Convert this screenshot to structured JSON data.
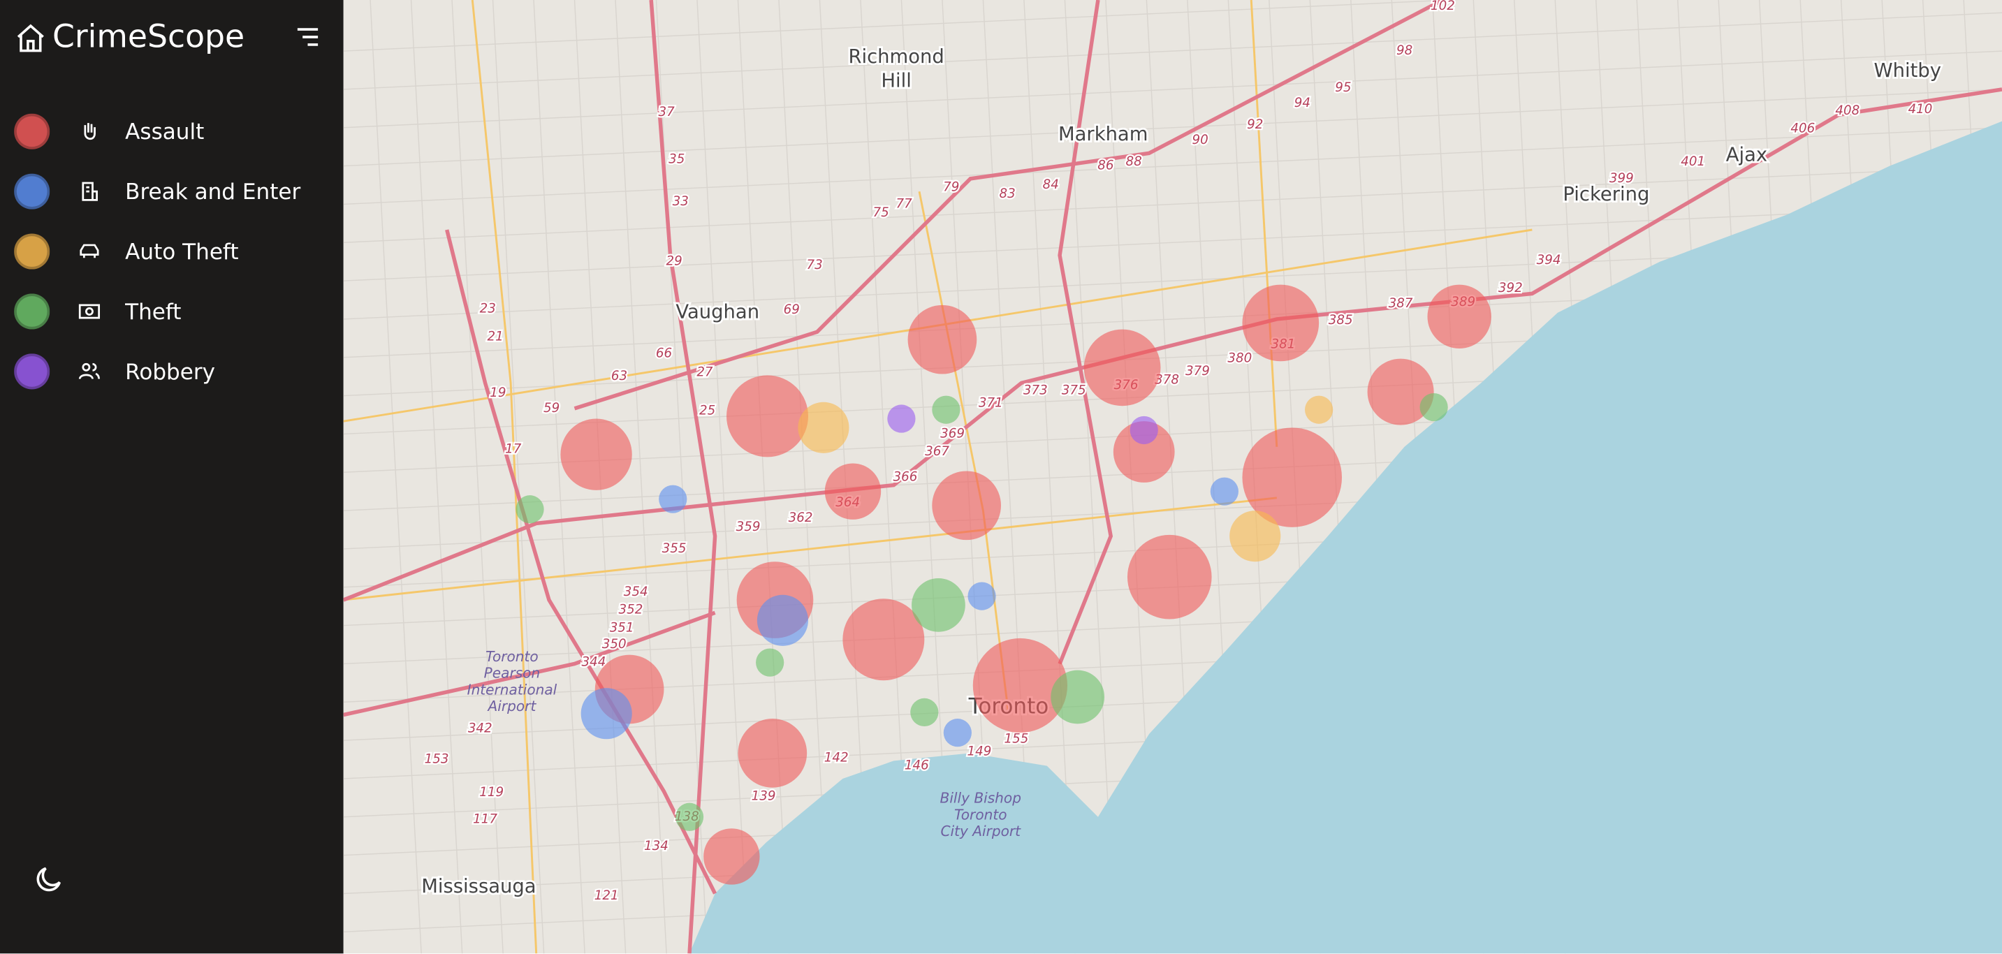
{
  "app": {
    "title": "CrimeScope"
  },
  "legend": [
    {
      "label": "Assault",
      "color": "#f05a5a"
    },
    {
      "label": "Break and Enter",
      "color": "#5b8ff0"
    },
    {
      "label": "Auto Theft",
      "color": "#f8b94e"
    },
    {
      "label": "Theft",
      "color": "#6cc26a"
    },
    {
      "label": "Robbery",
      "color": "#9a5cf0"
    }
  ],
  "map": {
    "places": [
      "Richmond",
      "Hill",
      "Markham",
      "Vaughan",
      "Toronto",
      "Mississauga",
      "Pickering",
      "Ajax",
      "Whitby"
    ],
    "airports": [
      [
        "Toronto",
        "Pearson",
        "International",
        "Airport"
      ],
      [
        "Billy Bishop",
        "Toronto",
        "City Airport"
      ]
    ],
    "routes": [
      "37",
      "35",
      "33",
      "29",
      "27",
      "25",
      "23",
      "21",
      "19",
      "17",
      "59",
      "63",
      "66",
      "69",
      "73",
      "75",
      "77",
      "79",
      "83",
      "84",
      "86",
      "88",
      "90",
      "92",
      "94",
      "95",
      "98",
      "102",
      "359",
      "362",
      "364",
      "366",
      "367",
      "369",
      "371",
      "373",
      "375",
      "376",
      "378",
      "379",
      "380",
      "381",
      "385",
      "387",
      "389",
      "392",
      "394",
      "399",
      "401",
      "406",
      "408",
      "410",
      "355",
      "354",
      "352",
      "351",
      "350",
      "344",
      "342",
      "153",
      "155",
      "149",
      "146",
      "142",
      "139",
      "138",
      "134",
      "121",
      "119",
      "117"
    ]
  }
}
